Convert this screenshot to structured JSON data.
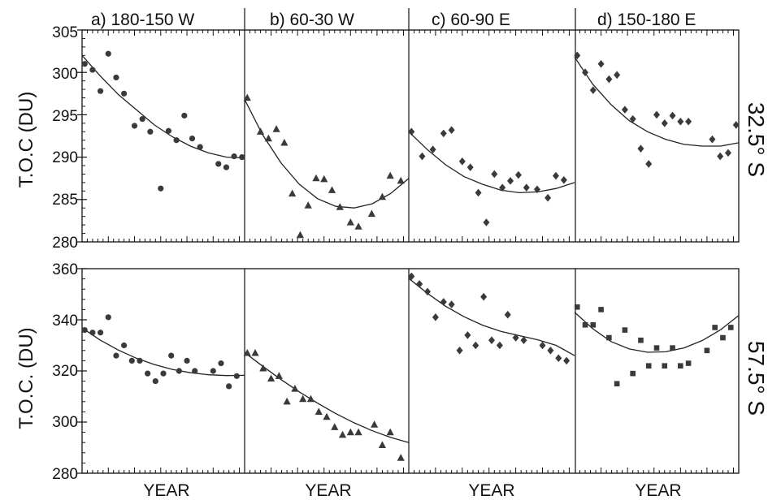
{
  "chart_data": {
    "type": "scatter",
    "column_titles": [
      "a) 180-150 W",
      "b) 60-30 W",
      "c) 60-90 E",
      "d) 150-180 E"
    ],
    "x_label": "YEAR",
    "rows": [
      {
        "row_label": "32.5° S",
        "y_label": "T.O.C (DU)",
        "ylim": [
          280,
          305
        ],
        "yticks": [
          "305",
          "300",
          "295",
          "290",
          "285",
          "280"
        ],
        "panels": [
          {
            "marker": "circle",
            "x": [
              0.5,
              2,
              3.5,
              5,
              6.5,
              8,
              10,
              11.5,
              13,
              15,
              16.5,
              18,
              19.5,
              21,
              22.5,
              26,
              27.5,
              29,
              30.5
            ],
            "y": [
              301,
              300.3,
              297.8,
              302.2,
              299.4,
              297.5,
              293.7,
              294.5,
              293,
              286.3,
              293.1,
              292,
              294.9,
              292.2,
              291.2,
              289.2,
              288.8,
              290.1,
              290
            ],
            "fit": [
              302,
              299.6,
              297.4,
              295.6,
              293.8,
              292.4,
              291.3,
              290.5,
              290,
              289.9
            ]
          },
          {
            "marker": "triangle",
            "x": [
              0.5,
              3,
              4.5,
              6,
              7.5,
              9,
              10.5,
              12,
              13.5,
              15,
              16.5,
              18,
              20,
              21.5,
              24,
              26,
              27.5,
              29.5
            ],
            "y": [
              297,
              293,
              292.2,
              293.3,
              291.7,
              285.7,
              280.8,
              284.3,
              287.5,
              287.4,
              286.1,
              284.1,
              282.3,
              281.8,
              283.3,
              285.3,
              287.8,
              287.2
            ],
            "fit": [
              296.8,
              292.6,
              289.3,
              286.8,
              285.1,
              284.2,
              284,
              284.5,
              285.7,
              287.5
            ]
          },
          {
            "marker": "diamond",
            "x": [
              0.5,
              2.5,
              4.5,
              6.5,
              8,
              10,
              11.5,
              13,
              14.5,
              16,
              17.5,
              19,
              20.5,
              22,
              24,
              26,
              27.5,
              29
            ],
            "y": [
              293,
              290.1,
              290.9,
              292.8,
              293.2,
              289.5,
              288.8,
              285.8,
              282.3,
              288,
              286.4,
              287.2,
              287.9,
              286.4,
              286.2,
              285.2,
              287.8,
              287.3
            ],
            "fit": [
              293,
              290.9,
              289.1,
              287.7,
              286.8,
              286.1,
              285.8,
              285.9,
              286.3,
              287
            ]
          },
          {
            "marker": "diamond",
            "x": [
              0.5,
              2,
              3.5,
              5,
              6.5,
              8,
              9.5,
              11,
              12.5,
              14,
              15.5,
              17,
              18.5,
              20,
              21.5,
              26,
              27.5,
              29,
              30.5
            ],
            "y": [
              302,
              300,
              297.9,
              301,
              299.2,
              299.7,
              295.6,
              294.5,
              291,
              289.2,
              295,
              294,
              294.9,
              294.2,
              294.2,
              292.1,
              290.1,
              290.5,
              293.8
            ],
            "fit": [
              301.8,
              298.6,
              296.2,
              294.3,
              293,
              292.1,
              291.5,
              291.3,
              291.3,
              291.7
            ]
          }
        ]
      },
      {
        "row_label": "57.5° S",
        "y_label": "T.O.C. (DU)",
        "ylim": [
          280,
          360
        ],
        "yticks": [
          "360",
          "340",
          "320",
          "300",
          "280"
        ],
        "panels": [
          {
            "marker": "circle",
            "x": [
              0.5,
              2,
              3.5,
              5,
              6.5,
              8,
              9.5,
              11,
              12.5,
              14,
              15.5,
              17,
              18.5,
              20,
              21.5,
              25,
              26.5,
              28,
              29.5
            ],
            "y": [
              336,
              335,
              335,
              341,
              326,
              330,
              324,
              324,
              319,
              316,
              319,
              326,
              320,
              324,
              320,
              320,
              323,
              314,
              318
            ],
            "fit": [
              336.8,
              332.1,
              328.2,
              325,
              322.5,
              320.6,
              319.3,
              318.5,
              318.2,
              318.3
            ]
          },
          {
            "marker": "triangle",
            "x": [
              0.5,
              2,
              3.5,
              5,
              6.5,
              8,
              9.5,
              11,
              12.5,
              14,
              15.5,
              17,
              18.5,
              20,
              21.5,
              24.5,
              26,
              27.5,
              29.5
            ],
            "y": [
              327,
              327,
              321,
              317,
              318,
              308,
              313,
              309,
              309,
              304,
              302,
              298,
              295,
              296,
              296,
              299,
              291,
              296,
              286
            ],
            "fit": [
              327.2,
              321.8,
              316.6,
              311.8,
              307.4,
              303.3,
              299.7,
              296.6,
              294,
              292
            ]
          },
          {
            "marker": "diamond",
            "x": [
              0.5,
              2,
              3.5,
              5,
              6.5,
              8,
              9.5,
              11,
              12.5,
              14,
              15.5,
              17,
              18.5,
              20,
              21.5,
              25,
              26.5,
              28,
              29.5
            ],
            "y": [
              357,
              354,
              351,
              341,
              347,
              346,
              328,
              334,
              330,
              349,
              332,
              330,
              342,
              333,
              332,
              330,
              328,
              325,
              324
            ],
            "fit": [
              356.2,
              350.4,
              345.3,
              341.2,
              337.9,
              335.5,
              333.8,
              332.2,
              330,
              326
            ]
          },
          {
            "marker": "square",
            "x": [
              0.5,
              2,
              3.5,
              5,
              6.5,
              8,
              9.5,
              11,
              12.5,
              14,
              15.5,
              17,
              18.5,
              20,
              21.5,
              25,
              26.5,
              28,
              29.5
            ],
            "y": [
              345,
              338,
              338,
              344,
              333,
              315,
              336,
              319,
              332,
              322,
              329,
              322,
              329,
              322,
              323,
              328,
              337,
              333,
              337
            ],
            "fit": [
              343,
              336.5,
              331.5,
              328.6,
              327.3,
              327.5,
              329,
              331.9,
              336.1,
              341.7
            ]
          }
        ]
      }
    ]
  }
}
